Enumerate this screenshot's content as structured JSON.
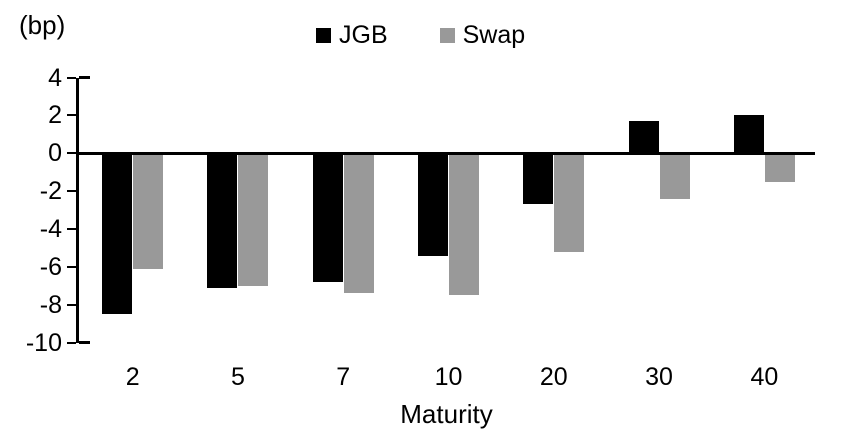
{
  "chart_data": {
    "type": "bar",
    "title": "",
    "unit_label": "(bp)",
    "xlabel": "Maturity",
    "ylabel": "",
    "categories": [
      "2",
      "5",
      "7",
      "10",
      "20",
      "30",
      "40"
    ],
    "series": [
      {
        "name": "JGB",
        "color": "#000000",
        "values": [
          -8.5,
          -7.1,
          -6.8,
          -5.4,
          -2.7,
          1.7,
          2.0
        ]
      },
      {
        "name": "Swap",
        "color": "#999999",
        "values": [
          -6.1,
          -7.0,
          -7.4,
          -7.5,
          -5.2,
          -2.4,
          -1.5
        ]
      }
    ],
    "ylim": [
      -10,
      4
    ],
    "yticks": [
      4,
      2,
      0,
      -2,
      -4,
      -6,
      -8,
      -10
    ],
    "legend_position": "top-center",
    "grid": false,
    "baseline": 0
  }
}
